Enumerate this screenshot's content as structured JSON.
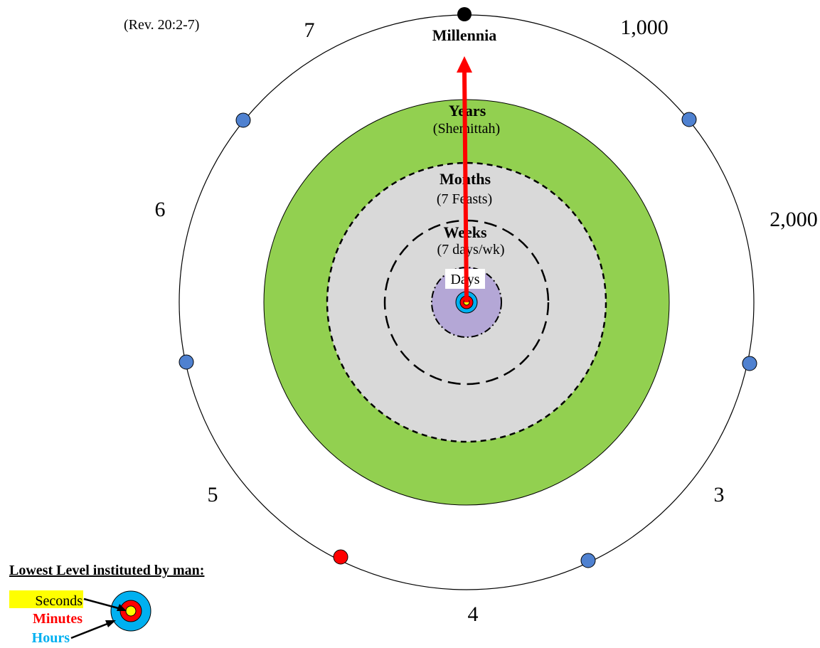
{
  "reference": "(Rev. 20:2-7)",
  "top_label": "Millennia",
  "outer_labels": {
    "n7": "7",
    "n1000": "1,000",
    "n2000": "2,000",
    "n3": "3",
    "n4": "4",
    "n5": "5",
    "n6": "6"
  },
  "rings": {
    "years": {
      "title": "Years",
      "subtitle": "(Shemittah)"
    },
    "months": {
      "title": "Months",
      "subtitle": "(7 Feasts)"
    },
    "weeks": {
      "title": "Weeks",
      "subtitle": "(7 days/wk)"
    },
    "days": {
      "title": "Days"
    }
  },
  "legend": {
    "title": "Lowest Level instituted by man:",
    "seconds": "Seconds",
    "minutes": "Minutes",
    "hours": "Hours"
  },
  "colors": {
    "years_ring": "#92d050",
    "months_ring": "#d9d9d9",
    "days_ring": "#b4a7d6",
    "hours": "#00b0f0",
    "minutes": "#ff0000",
    "seconds": "#ffff00",
    "arrow": "#ff0000",
    "marker_blue": "#4f81d0",
    "marker_red": "#ff0000",
    "marker_top": "#000000"
  }
}
